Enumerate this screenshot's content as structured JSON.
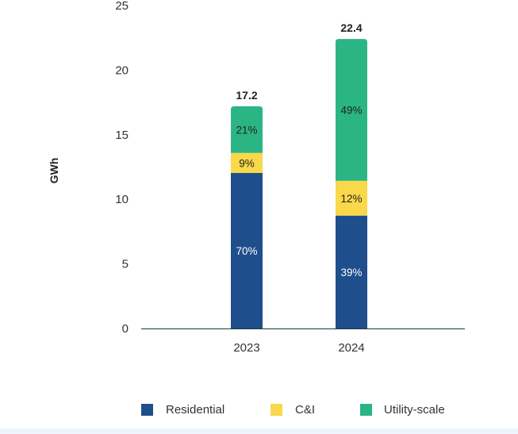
{
  "chart_data": {
    "type": "bar",
    "stacked": true,
    "title": "",
    "xlabel": "",
    "ylabel": "GWh",
    "ylim": [
      0,
      25
    ],
    "yticks": [
      0,
      5,
      10,
      15,
      20,
      25
    ],
    "categories": [
      "2023",
      "2024"
    ],
    "totals": [
      "17.2",
      "22.4"
    ],
    "series": [
      {
        "name": "Residential",
        "color": "#1f4e8c",
        "label_color": "#ffffff",
        "percent": [
          "70%",
          "39%"
        ],
        "values": [
          12.04,
          8.74
        ]
      },
      {
        "name": "C&I",
        "color": "#f9d84a",
        "label_color": "#222222",
        "percent": [
          "9%",
          "12%"
        ],
        "values": [
          1.55,
          2.69
        ]
      },
      {
        "name": "Utility-scale",
        "color": "#2bb584",
        "label_color": "#222222",
        "percent": [
          "21%",
          "49%"
        ],
        "values": [
          3.61,
          10.98
        ]
      }
    ],
    "grid": false,
    "legend_position": "bottom"
  }
}
